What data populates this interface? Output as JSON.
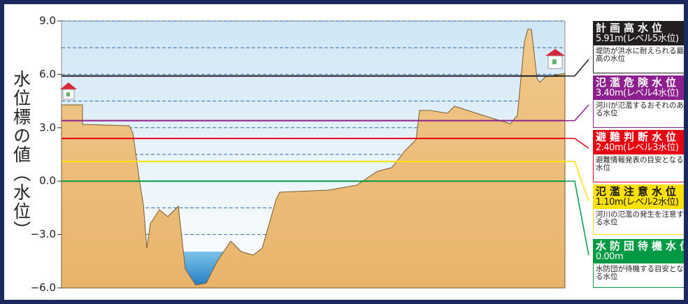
{
  "y_axis": {
    "label": "水位標の値（水位）",
    "ylim": [
      -6,
      9
    ],
    "yticks": [
      {
        "value": 9,
        "label": "9.0"
      },
      {
        "value": 6,
        "label": "6.0"
      },
      {
        "value": 3,
        "label": "3.0"
      },
      {
        "value": 0,
        "label": "0.0"
      },
      {
        "value": -3,
        "label": "−3.0"
      },
      {
        "value": -6,
        "label": "−6.0"
      }
    ],
    "minor_gridlines": [
      7.5,
      4.5,
      1.5,
      -1.5,
      -4.5
    ]
  },
  "levels": [
    {
      "name": "計画高水位",
      "value": 5.91,
      "value_label": "5.91m(レベル5水位)",
      "description": "堤防が洪水に耐えられる最高の水位",
      "color": "#231f20"
    },
    {
      "name": "氾濫危険水位",
      "value": 3.4,
      "value_label": "3.40m(レベル4水位)",
      "description": "河川が氾濫するおそれのある水位",
      "color": "#8e1f8f"
    },
    {
      "name": "避難判断水位",
      "value": 2.4,
      "value_label": "2.40m(レベル3水位)",
      "description": "避難情報発表の目安となる水位",
      "color": "#e60012"
    },
    {
      "name": "氾濫注意水位",
      "value": 1.1,
      "value_label": "1.10m(レベル2水位)",
      "description": "河川の氾濫の発生を注意する水位",
      "color": "#ffe100"
    },
    {
      "name": "水防団待機水位",
      "value": 0,
      "value_label": "0.00m",
      "description": "水防団が待機する目安となる水位",
      "color": "#009a44"
    }
  ]
}
